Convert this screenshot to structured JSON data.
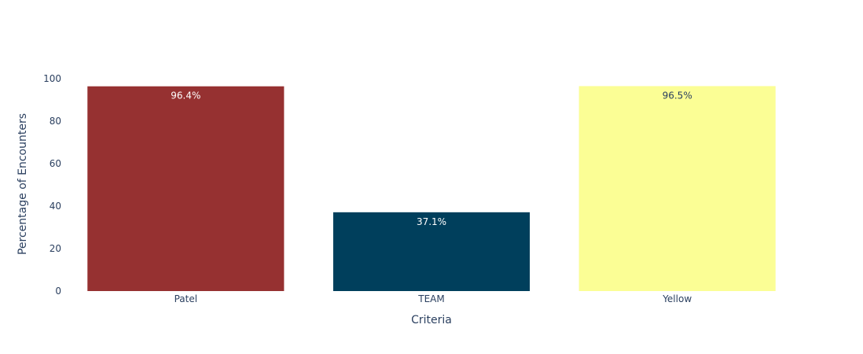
{
  "chart_data": {
    "type": "bar",
    "categories": [
      "Patel",
      "TEAM",
      "Yellow"
    ],
    "values": [
      96.4,
      37.1,
      96.5
    ],
    "text_labels": [
      "96.4%",
      "37.1%",
      "96.5%"
    ],
    "colors": [
      "#963131",
      "#003f5c",
      "#fbfe95"
    ],
    "label_colors": [
      "#ffffff",
      "#ffffff",
      "#2a3f5f"
    ],
    "xlabel": "Criteria",
    "ylabel": "Percentage of Encounters",
    "ylim": [
      0,
      100
    ],
    "yticks": [
      0,
      20,
      40,
      60,
      80,
      100
    ],
    "ytick_labels": [
      "0",
      "20",
      "40",
      "60",
      "80",
      "100"
    ],
    "grid": false,
    "legend": "none"
  }
}
